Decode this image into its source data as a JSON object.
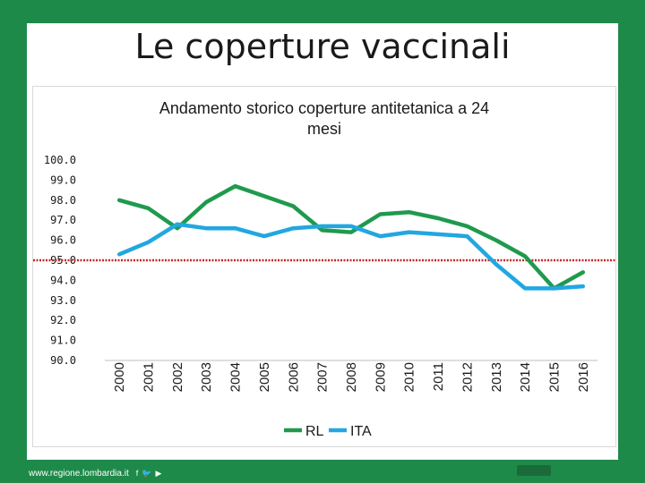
{
  "slide": {
    "title": "Le coperture vaccinali"
  },
  "footer": {
    "url": "www.regione.lombardia.it",
    "social_icons": [
      "facebook-icon",
      "twitter-icon",
      "youtube-icon"
    ]
  },
  "colors": {
    "background": "#1e8a4a",
    "rl": "#1f9a4d",
    "ita": "#22a7e0",
    "threshold": "#c0282b"
  },
  "chart_data": {
    "type": "line",
    "title": "Andamento storico coperture antitetanica  a 24 mesi",
    "title_lines": [
      "Andamento storico coperture antitetanica  a 24",
      "mesi"
    ],
    "categories": [
      "2000",
      "2001",
      "2002",
      "2003",
      "2004",
      "2005",
      "2006",
      "2007",
      "2008",
      "2009",
      "2010",
      "2011",
      "2012",
      "2013",
      "2014",
      "2015",
      "2016"
    ],
    "series": [
      {
        "name": "RL",
        "color": "#1f9a4d",
        "values": [
          98.0,
          97.6,
          96.6,
          97.9,
          98.7,
          98.2,
          97.7,
          96.5,
          96.4,
          97.3,
          97.4,
          97.1,
          96.7,
          96.0,
          95.2,
          93.6,
          94.4
        ]
      },
      {
        "name": "ITA",
        "color": "#22a7e0",
        "values": [
          95.3,
          95.9,
          96.8,
          96.6,
          96.6,
          96.2,
          96.6,
          96.7,
          96.7,
          96.2,
          96.4,
          96.3,
          96.2,
          94.8,
          93.6,
          93.6,
          93.7
        ]
      }
    ],
    "reference_line": {
      "value": 95.0,
      "color": "#c0282b",
      "style": "dotted"
    },
    "ylim": [
      90.0,
      100.0
    ],
    "yticks": [
      "100.0",
      "99.0",
      "98.0",
      "97.0",
      "96.0",
      "95.0",
      "94.0",
      "93.0",
      "92.0",
      "91.0",
      "90.0"
    ],
    "grid": false,
    "legend": "bottom",
    "xlabel": "",
    "ylabel": ""
  }
}
